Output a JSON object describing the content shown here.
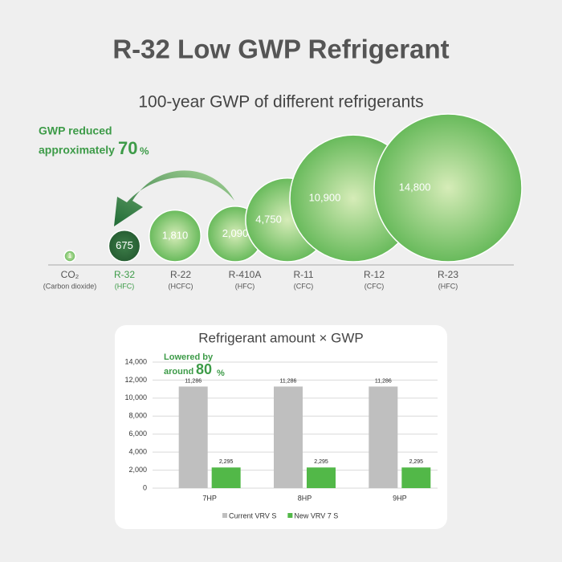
{
  "title": "R-32 Low GWP Refrigerant",
  "chart_data": [
    {
      "type": "bubble",
      "title": "100-year GWP of different refrigerants",
      "categories": [
        "CO₂",
        "R-32",
        "R-22",
        "R-410A",
        "R-11",
        "R-12",
        "R-23"
      ],
      "subcategories": [
        "(Carbon dioxide)",
        "(HFC)",
        "(HCFC)",
        "(HFC)",
        "(CFC)",
        "(CFC)",
        "(HFC)"
      ],
      "values": [
        1,
        675,
        1810,
        2090,
        4750,
        10900,
        14800
      ],
      "value_labels": [
        "1",
        "675",
        "1,810",
        "2,090",
        "4,750",
        "10,900",
        "14,800"
      ],
      "colors": [
        "#6dbb5e",
        "#2f6e3b",
        "#6dbb5e",
        "#6dbb5e",
        "#6dbb5e",
        "#6dbb5e",
        "#6dbb5e"
      ],
      "label_colors": [
        "#555555",
        "#3d9b48",
        "#555555",
        "#555555",
        "#555555",
        "#555555",
        "#555555"
      ],
      "annotation": {
        "lines": [
          "GWP reduced",
          "approximately"
        ],
        "emphasis": "70",
        "unit": "%"
      }
    },
    {
      "type": "bar",
      "title": "Refrigerant amount × GWP",
      "categories": [
        "7HP",
        "8HP",
        "9HP"
      ],
      "series": [
        {
          "name": "Current VRV S",
          "color": "#bfbfbf",
          "values": [
            11286,
            11286,
            11286
          ],
          "value_labels": [
            "11,286",
            "11,286",
            "11,286"
          ]
        },
        {
          "name": "New VRV 7 S",
          "color": "#52b848",
          "values": [
            2295,
            2295,
            2295
          ],
          "value_labels": [
            "2,295",
            "2,295",
            "2,295"
          ]
        }
      ],
      "ylim": [
        0,
        14000
      ],
      "yticks": [
        0,
        {
          "value": 2000,
          "label": "2,000"
        },
        {
          "value": 4000,
          "label": "4,000"
        },
        {
          "value": 6000,
          "label": "6,000"
        },
        {
          "value": 8000,
          "label": "8,000"
        },
        {
          "value": 10000,
          "label": "10,000"
        },
        {
          "value": 12000,
          "label": "12,000"
        },
        {
          "value": 14000,
          "label": "14,000"
        }
      ],
      "grid": true,
      "annotation": {
        "lines": [
          "Lowered by",
          "around"
        ],
        "emphasis": "80",
        "unit": "%"
      }
    }
  ]
}
